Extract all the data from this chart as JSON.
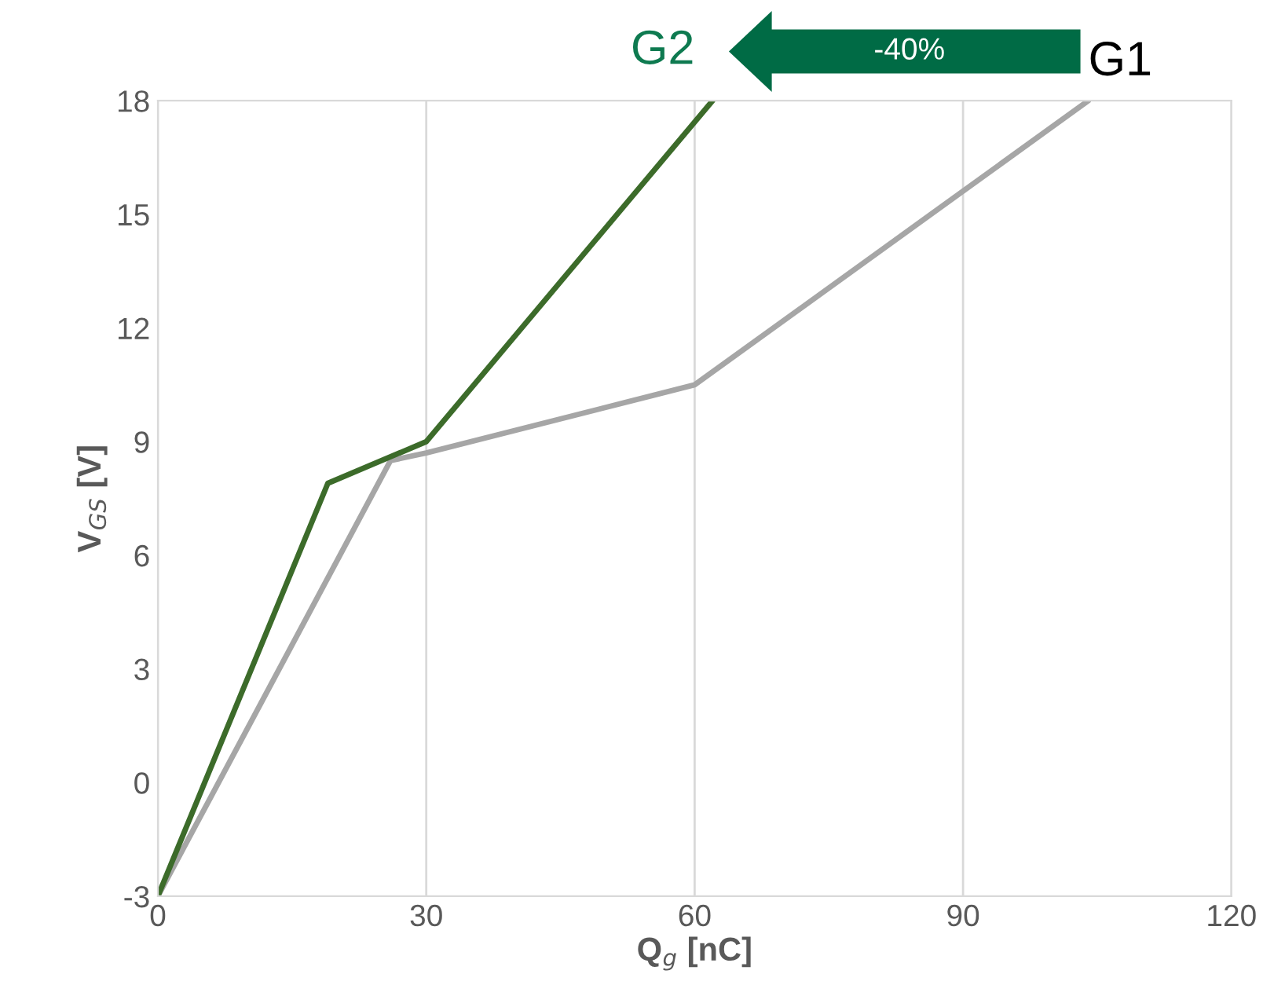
{
  "chart_data": {
    "type": "line",
    "xlabel": "Q$_{g}$ [nC]",
    "ylabel": "V$_{GS}$ [V]",
    "series": [
      {
        "color": "#a6a6a6",
        "x": [
          0,
          26,
          30,
          60,
          104
        ],
        "values": [
          -3,
          8.5,
          8.7,
          10.5,
          18
        ]
      },
      {
        "color": "#3c6b2a",
        "x": [
          0,
          19,
          30,
          62
        ],
        "values": [
          -3,
          7.9,
          9,
          18
        ]
      }
    ],
    "xlim": [
      0,
      120
    ],
    "xticks": [
      0,
      30,
      60,
      90,
      120
    ],
    "ylim": [
      -3,
      18
    ],
    "yticks": [
      -3,
      0,
      3,
      6,
      9,
      12,
      15,
      18
    ],
    "grid": "x",
    "legend": false,
    "marker": "none",
    "line_style": "solid",
    "annotations": [
      "G2",
      "-40%",
      "G1"
    ]
  }
}
